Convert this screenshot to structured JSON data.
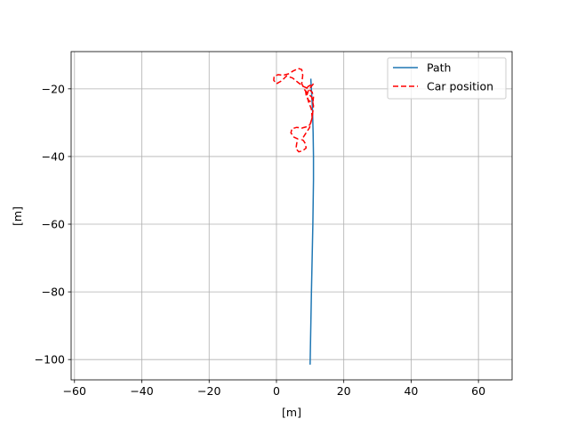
{
  "chart_data": {
    "type": "line",
    "title": "",
    "xlabel": "[m]",
    "ylabel": "[m]",
    "xlim": [
      -61,
      70
    ],
    "ylim": [
      -106,
      -9
    ],
    "xticks": [
      -60,
      -40,
      -20,
      0,
      20,
      40,
      60
    ],
    "yticks": [
      -100,
      -80,
      -60,
      -40,
      -20
    ],
    "xtick_labels": [
      "−60",
      "−40",
      "−20",
      "0",
      "20",
      "40",
      "60"
    ],
    "ytick_labels": [
      "−100",
      "−80",
      "−60",
      "−40",
      "−20"
    ],
    "grid": true,
    "legend_position": "top-right",
    "series": [
      {
        "name": "Path",
        "style": "solid",
        "color": "#1f77b4",
        "x": [
          10.0,
          10.2,
          10.4,
          10.6,
          10.8,
          11.0,
          11.0,
          10.9,
          10.7,
          10.5,
          10.3,
          10.2
        ],
        "y": [
          -101.5,
          -90,
          -80,
          -70,
          -60,
          -47,
          -40,
          -33,
          -26,
          -22,
          -19,
          -17
        ]
      },
      {
        "name": "Car position",
        "style": "dashed",
        "color": "#ff0000",
        "x": [
          11.0,
          9.6,
          9.0,
          9.6,
          10.4,
          10.6,
          10.0,
          9.0,
          7.5,
          6.0,
          4.6,
          4.3,
          5.2,
          6.3,
          6.0,
          5.8,
          6.6,
          7.8,
          8.8,
          8.6,
          8.0,
          7.5,
          8.5,
          9.8,
          10.6,
          11.0,
          10.5,
          8.5,
          7.5,
          7.8,
          7.5,
          6.5,
          5.0,
          3.5,
          2.0,
          0.5,
          -0.7,
          -0.8,
          0.0,
          1.6,
          3.0,
          4.8,
          6.5,
          8.0,
          9.5,
          10.6,
          11.0,
          10.8,
          9.6,
          8.8,
          8.6,
          9.4,
          10.8
        ],
        "y": [
          -18.5,
          -20.2,
          -22.0,
          -24.0,
          -26.0,
          -28.5,
          -30.5,
          -31.2,
          -31.6,
          -31.4,
          -31.8,
          -33.0,
          -34.3,
          -34.8,
          -36.2,
          -37.7,
          -38.6,
          -38.3,
          -37.5,
          -36.2,
          -35.3,
          -35.0,
          -33.5,
          -31.5,
          -28.5,
          -25.0,
          -22.5,
          -20.5,
          -18.5,
          -16.0,
          -14.3,
          -14.0,
          -14.7,
          -15.6,
          -16.0,
          -15.8,
          -16.3,
          -17.5,
          -18.5,
          -17.6,
          -16.2,
          -16.8,
          -18.2,
          -19.3,
          -20.0,
          -21.0,
          -22.5,
          -24.0,
          -23.5,
          -21.8,
          -20.2,
          -19.3,
          -18.5
        ]
      }
    ]
  }
}
